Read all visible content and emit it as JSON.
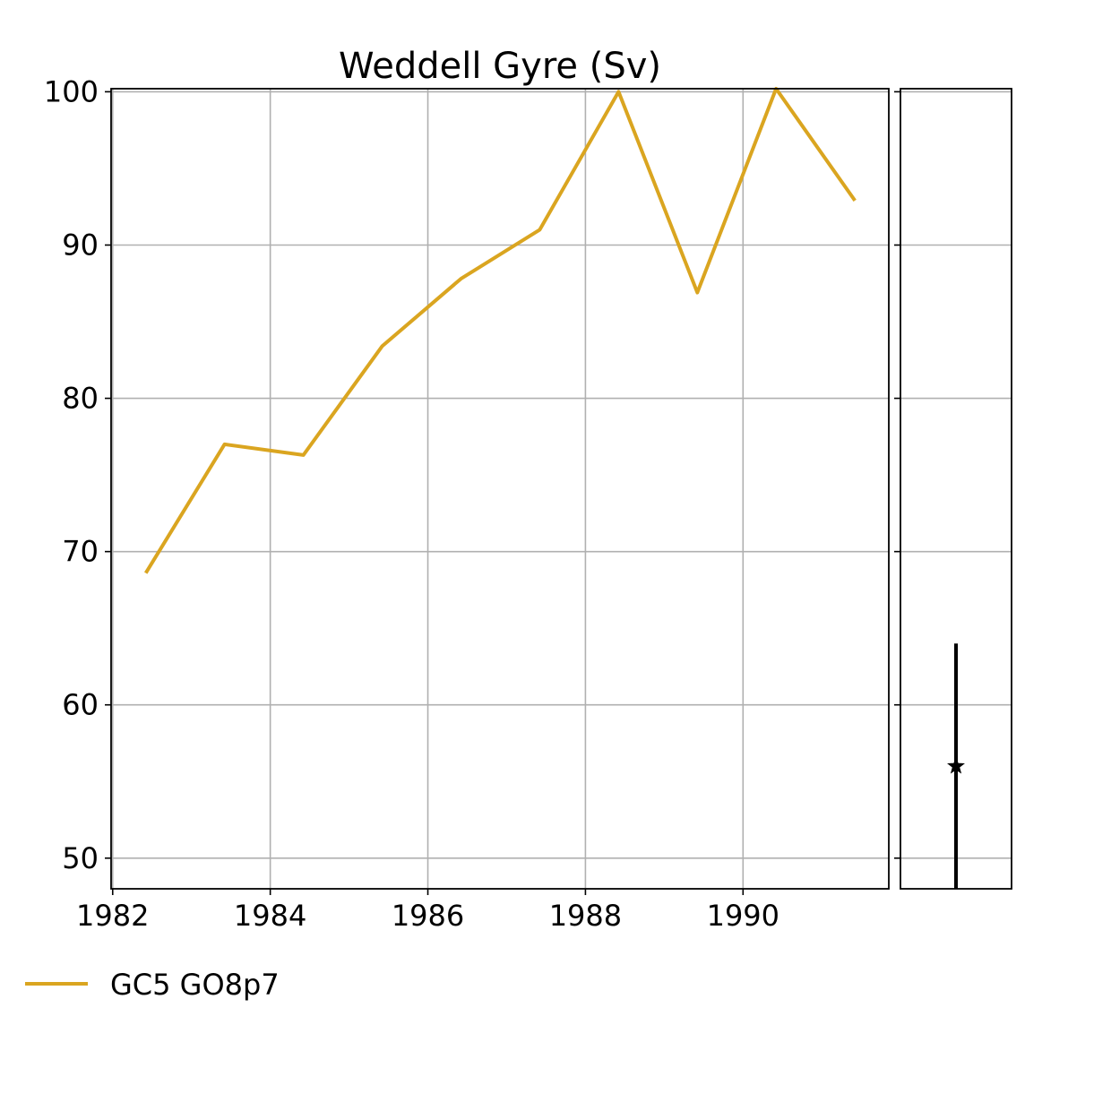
{
  "chart_data": {
    "type": "line",
    "title": "Weddell Gyre (Sv)",
    "xlabel": "",
    "ylabel": "",
    "xlim": [
      1981.98,
      1991.85
    ],
    "ylim": [
      48.0,
      100.2
    ],
    "x_ticks": [
      "1982",
      "1984",
      "1986",
      "1988",
      "1990"
    ],
    "y_ticks": [
      "50",
      "60",
      "70",
      "80",
      "90",
      "100"
    ],
    "grid": true,
    "series": [
      {
        "name": "GC5 GO8p7",
        "color": "#DAA520",
        "x": [
          1982.42,
          1983.42,
          1984.42,
          1985.42,
          1986.42,
          1987.42,
          1988.42,
          1989.42,
          1990.42,
          1991.42
        ],
        "y": [
          68.6,
          77.0,
          76.3,
          83.4,
          87.8,
          91.0,
          100.0,
          86.9,
          100.2,
          92.9
        ]
      }
    ],
    "observation": {
      "value": 56.0,
      "error_low": 48.0,
      "error_high": 64.0,
      "color": "#000000",
      "marker": "star"
    },
    "legend_position": "bottom-left"
  }
}
